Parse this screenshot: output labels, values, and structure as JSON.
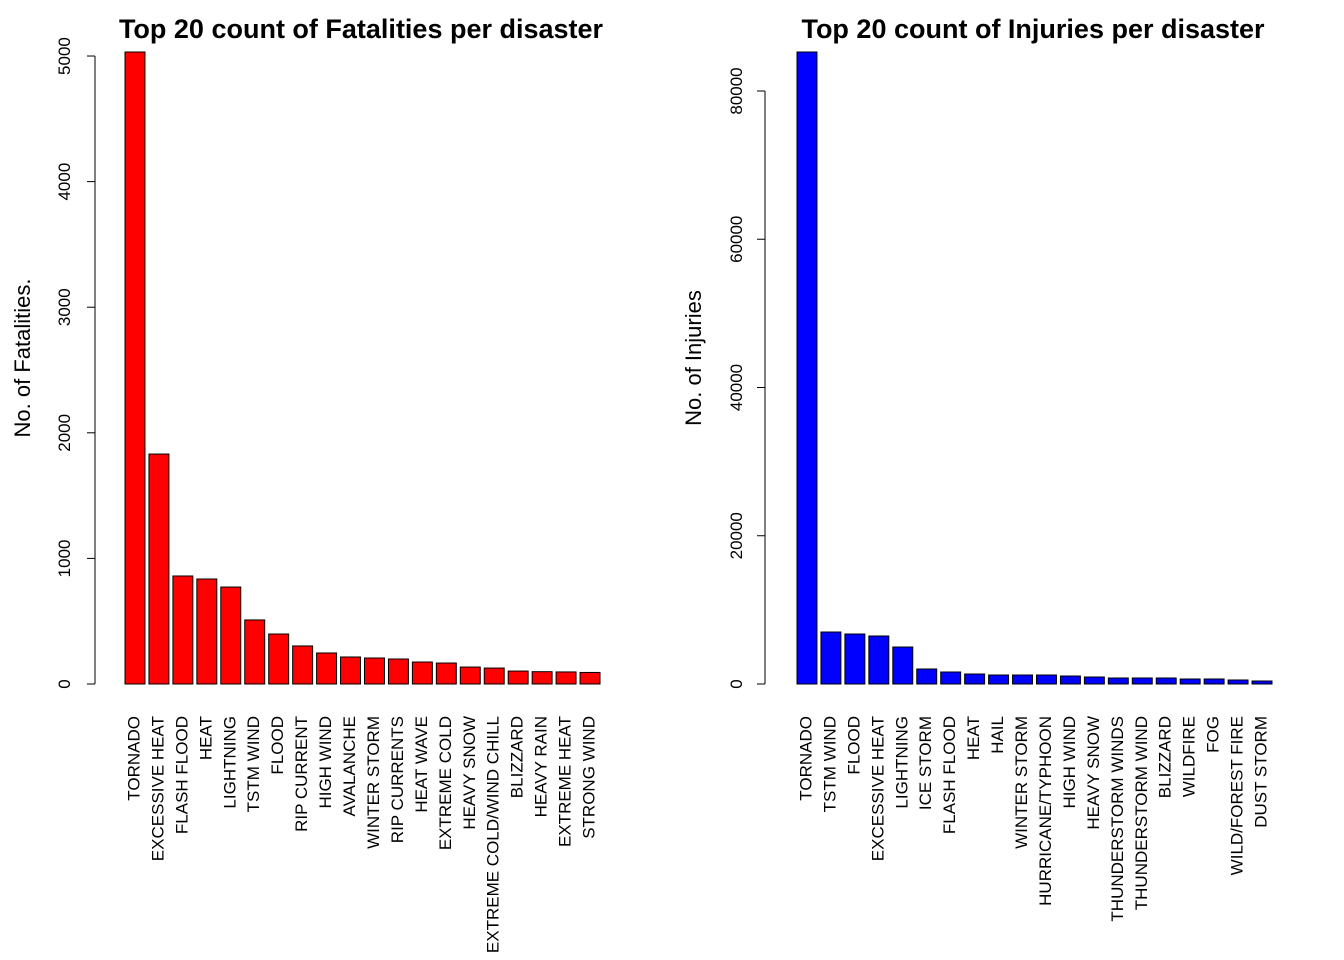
{
  "chart_data": [
    {
      "type": "bar",
      "title": "Top 20 count of Fatalities per disaster",
      "y_label": "No. of Fatalities.",
      "color": "#ff0000",
      "categories": [
        "TORNADO",
        "EXCESSIVE HEAT",
        "FLASH FLOOD",
        "HEAT",
        "LIGHTNING",
        "TSTM WIND",
        "FLOOD",
        "RIP CURRENT",
        "HIGH WIND",
        "AVALANCHE",
        "WINTER STORM",
        "RIP CURRENTS",
        "HEAT WAVE",
        "EXTREME COLD",
        "HEAVY SNOW",
        "EXTREME COLD/WIND CHILL",
        "BLIZZARD",
        "HEAVY RAIN",
        "EXTREME HEAT",
        "STRONG WIND"
      ],
      "values": [
        5032,
        1831,
        860,
        836,
        772,
        510,
        398,
        303,
        247,
        215,
        207,
        199,
        175,
        167,
        135,
        127,
        103,
        98,
        96,
        92
      ],
      "ylim": [
        0,
        5032
      ],
      "yticks": [
        0,
        1000,
        2000,
        3000,
        4000,
        5000
      ]
    },
    {
      "type": "bar",
      "title": "Top 20 count of Injuries per disaster",
      "y_label": "No. of Injuries",
      "color": "#0000ff",
      "categories": [
        "TORNADO",
        "TSTM WIND",
        "FLOOD",
        "EXCESSIVE HEAT",
        "LIGHTNING",
        "ICE STORM",
        "FLASH FLOOD",
        "HEAT",
        "HAIL",
        "WINTER STORM",
        "HURRICANE/TYPHOON",
        "HIGH WIND",
        "HEAVY SNOW",
        "THUNDERSTORM WINDS",
        "THUNDERSTORM WIND",
        "BLIZZARD",
        "WILDFIRE",
        "FOG",
        "WILD/FOREST FIRE",
        "DUST STORM"
      ],
      "values": [
        85260,
        7015,
        6745,
        6475,
        4990,
        2024,
        1619,
        1349,
        1214,
        1214,
        1214,
        1079,
        944,
        809,
        809,
        809,
        675,
        675,
        540,
        405
      ],
      "ylim": [
        0,
        85260
      ],
      "yticks": [
        0,
        20000,
        40000,
        60000,
        80000
      ]
    }
  ]
}
